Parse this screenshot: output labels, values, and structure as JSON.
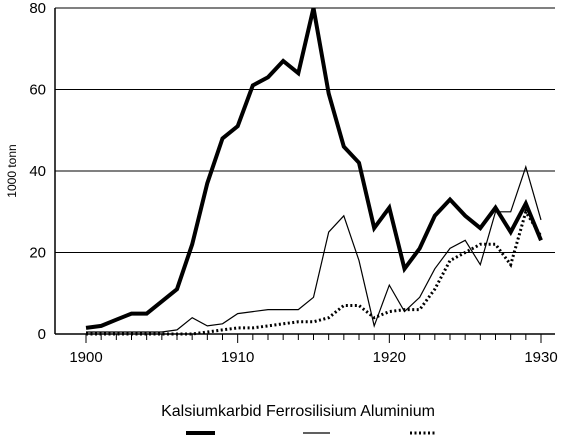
{
  "chart_data": {
    "type": "line",
    "title": "",
    "xlabel": "",
    "ylabel": "1000 tonn",
    "xlim": [
      1900,
      1930
    ],
    "ylim": [
      0,
      80
    ],
    "x_ticks": [
      "1900",
      "1910",
      "1920",
      "1930"
    ],
    "y_ticks": [
      "0",
      "20",
      "40",
      "60",
      "80"
    ],
    "grid": "horizontal",
    "legend_position": "bottom",
    "legend_text": "Kalsiumkarbid Ferrosilisium Aluminium",
    "series": [
      {
        "name": "Kalsiumkarbid",
        "style": "thick-solid",
        "color": "#000000",
        "x": [
          1900,
          1901,
          1902,
          1903,
          1904,
          1905,
          1906,
          1907,
          1908,
          1909,
          1910,
          1911,
          1912,
          1913,
          1914,
          1915,
          1916,
          1917,
          1918,
          1919,
          1920,
          1921,
          1922,
          1923,
          1924,
          1925,
          1926,
          1927,
          1928,
          1929,
          1930
        ],
        "values": [
          1.5,
          2,
          3.5,
          5,
          5,
          8,
          11,
          22,
          37,
          48,
          51,
          61,
          63,
          67,
          64,
          80,
          59,
          46,
          42,
          26,
          31,
          16,
          21,
          29,
          33,
          29,
          26,
          31,
          25,
          32,
          23
        ]
      },
      {
        "name": "Ferrosilisium",
        "style": "thin-solid",
        "color": "#000000",
        "x": [
          1900,
          1901,
          1902,
          1903,
          1904,
          1905,
          1906,
          1907,
          1908,
          1909,
          1910,
          1911,
          1912,
          1913,
          1914,
          1915,
          1916,
          1917,
          1918,
          1919,
          1920,
          1921,
          1922,
          1923,
          1924,
          1925,
          1926,
          1927,
          1928,
          1929,
          1930
        ],
        "values": [
          0.5,
          0.5,
          0.5,
          0.5,
          0.5,
          0.5,
          1,
          4,
          2,
          2.5,
          5,
          5.5,
          6,
          6,
          6,
          9,
          25,
          29,
          18,
          2,
          12,
          5.5,
          9,
          16,
          21,
          23,
          17,
          30,
          30,
          41,
          28
        ]
      },
      {
        "name": "Aluminium",
        "style": "dotted",
        "color": "#000000",
        "x": [
          1900,
          1901,
          1902,
          1903,
          1904,
          1905,
          1906,
          1907,
          1908,
          1909,
          1910,
          1911,
          1912,
          1913,
          1914,
          1915,
          1916,
          1917,
          1918,
          1919,
          1920,
          1921,
          1922,
          1923,
          1924,
          1925,
          1926,
          1927,
          1928,
          1929,
          1930
        ],
        "values": [
          0,
          0,
          0,
          0,
          0,
          0,
          0,
          0,
          0.5,
          1,
          1.5,
          1.5,
          2,
          2.5,
          3,
          3,
          4,
          7,
          7,
          4,
          5.5,
          6,
          6,
          11,
          18,
          20,
          22,
          22,
          17,
          30,
          24
        ]
      }
    ]
  }
}
